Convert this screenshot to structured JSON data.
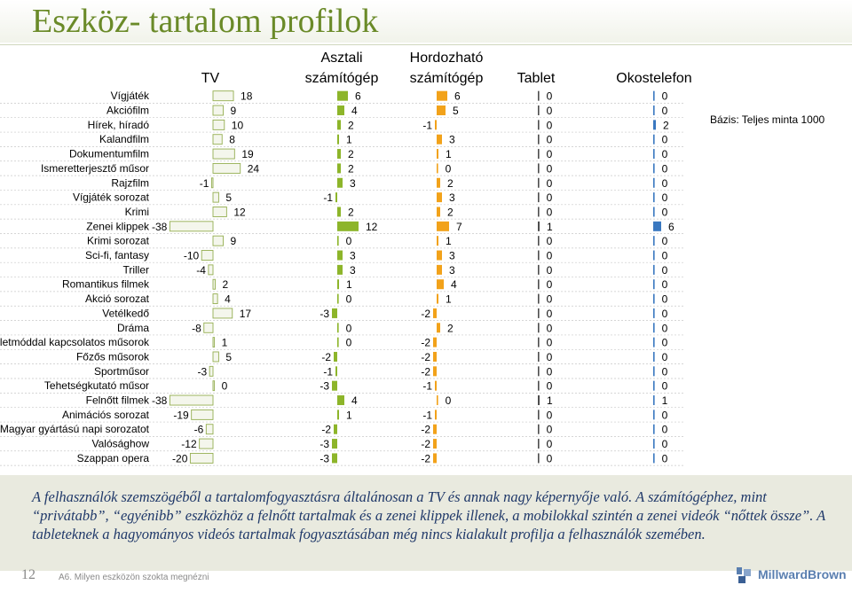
{
  "page": {
    "title": "Eszköz- tartalom profilok",
    "base_note": "Bázis: Teljes minta 1000",
    "caption": "A felhasználók szemszögéből a tartalomfogyasztásra általánosan a TV és annak nagy képernyője való. A számítógéphez, mint “privátabb”, “egyénibb” eszközhöz a felnőtt tartalmak és a zenei klippek illenek, a mobilokkal szintén a zenei videók “nőttek össze”. A tableteknek a hagyományos videós tartalmak fogyasztásában még nincs kialakult profilja a felhasználók szemében.",
    "page_number": "12",
    "footnote": "A6. Milyen eszközön szokta megnézni",
    "logo_text": "MillwardBrown"
  },
  "colors": {
    "title": "#6a8a28",
    "tv_bar": "#f4f6ec",
    "tv_bar_stroke": "#94ae50",
    "desktop_bar": "#8db52a",
    "laptop_bar": "#f2a21a",
    "tablet_bar": "#4d4d4d",
    "phone_bar": "#3a78c0",
    "caption_text": "#1f3869"
  },
  "chart_data": {
    "type": "bar",
    "orientation": "horizontal",
    "categories": [
      "Vígjáték",
      "Akciófilm",
      "Hírek, híradó",
      "Kalandfilm",
      "Dokumentumfilm",
      "Ismeretterjesztő műsor",
      "Rajzfilm",
      "Vígjáték sorozat",
      "Krimi",
      "Zenei klippek",
      "Krimi sorozat",
      "Sci-fi, fantasy",
      "Triller",
      "Romantikus filmek",
      "Akció sorozat",
      "Vetélkedő",
      "Dráma",
      "Életmóddal kapcsolatos műsorok",
      "Főzős műsorok",
      "Sportműsor",
      "Tehetségkutató műsor",
      "Felnőtt filmek",
      "Animációs sorozat",
      "Magyar gyártású napi sorozatot",
      "Valósághow",
      "Szappan opera"
    ],
    "series": [
      {
        "name": "TV",
        "values": [
          18,
          9,
          10,
          8,
          19,
          24,
          -1,
          5,
          12,
          -38,
          9,
          -10,
          -4,
          2,
          4,
          17,
          -8,
          1,
          5,
          -3,
          0,
          -38,
          -19,
          -6,
          -12,
          -20
        ]
      },
      {
        "name": "Asztali számítógép",
        "values": [
          6,
          4,
          2,
          1,
          2,
          2,
          3,
          -1,
          2,
          12,
          0,
          3,
          3,
          1,
          0,
          -3,
          0,
          0,
          -2,
          -1,
          -3,
          4,
          1,
          -2,
          -3,
          -3
        ]
      },
      {
        "name": "Hordozható számítógép",
        "values": [
          6,
          5,
          -1,
          3,
          1,
          0,
          2,
          3,
          2,
          7,
          1,
          3,
          3,
          4,
          1,
          -2,
          2,
          -2,
          -2,
          -2,
          -1,
          0,
          -1,
          -2,
          -2,
          -2
        ]
      },
      {
        "name": "Tablet",
        "values": [
          0,
          0,
          0,
          0,
          0,
          0,
          0,
          0,
          0,
          1,
          0,
          0,
          0,
          0,
          0,
          0,
          0,
          0,
          0,
          0,
          0,
          1,
          0,
          0,
          0,
          0
        ]
      },
      {
        "name": "Okostelefon",
        "values": [
          0,
          0,
          2,
          0,
          0,
          0,
          0,
          0,
          0,
          6,
          0,
          0,
          0,
          0,
          0,
          0,
          0,
          0,
          0,
          0,
          0,
          1,
          0,
          0,
          0,
          0
        ]
      }
    ],
    "headers": [
      [
        "TV"
      ],
      [
        "Asztali",
        "számítógép"
      ],
      [
        "Hordozható",
        "számítógép"
      ],
      [
        "Tablet"
      ],
      [
        "Okostelefon"
      ]
    ],
    "grid": false,
    "legend": "none"
  }
}
